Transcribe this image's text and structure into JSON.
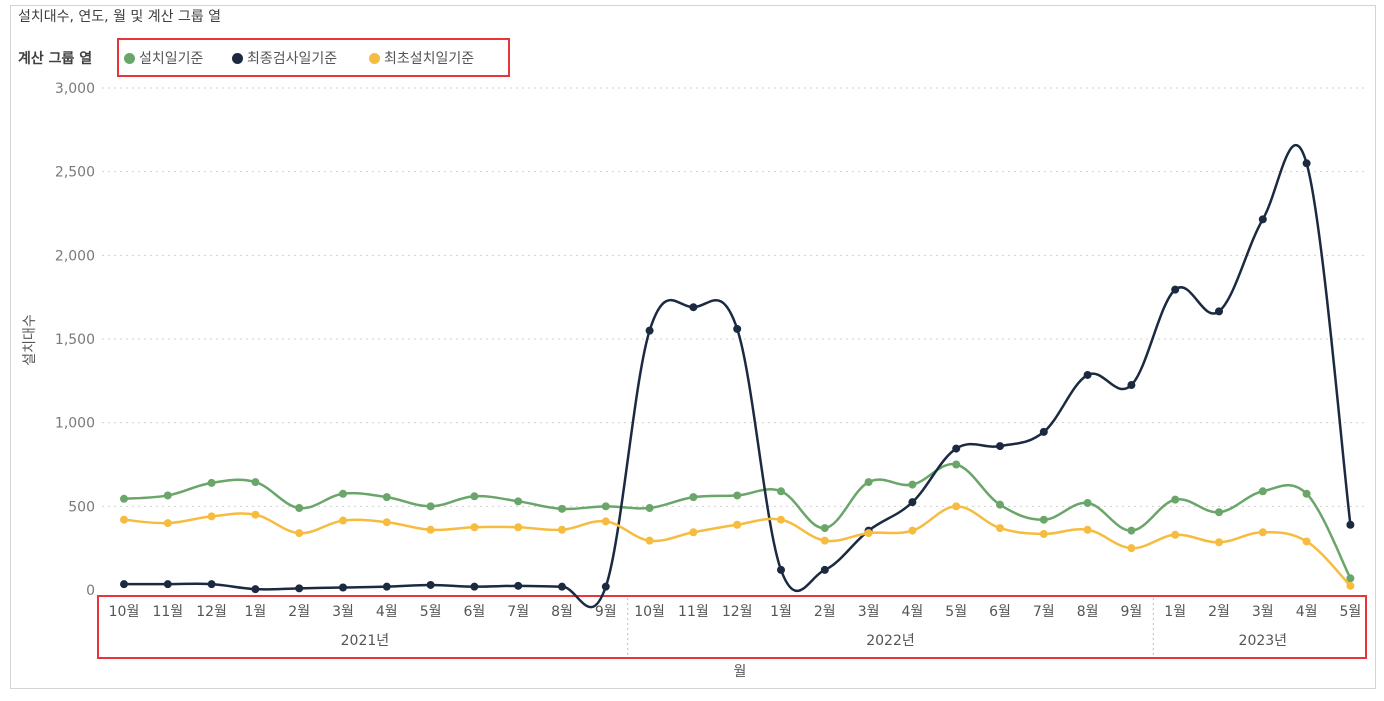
{
  "chart_data": {
    "type": "line",
    "title": "설치대수, 연도, 월 및 계산 그룹 열",
    "legend_title": "계산 그룹 열",
    "xlabel": "월",
    "ylabel": "설치대수",
    "ylim": [
      0,
      3000
    ],
    "yticks": [
      "0",
      "500",
      "1,000",
      "1,500",
      "2,000",
      "2,500",
      "3,000"
    ],
    "categories": [
      "10월",
      "11월",
      "12월",
      "1월",
      "2월",
      "3월",
      "4월",
      "5월",
      "6월",
      "7월",
      "8월",
      "9월",
      "10월",
      "11월",
      "12월",
      "1월",
      "2월",
      "3월",
      "4월",
      "5월",
      "6월",
      "7월",
      "8월",
      "9월",
      "1월",
      "2월",
      "3월",
      "4월",
      "5월"
    ],
    "years": [
      {
        "label": "2021년",
        "start": 0,
        "end": 11
      },
      {
        "label": "2022년",
        "start": 12,
        "end": 23
      },
      {
        "label": "2023년",
        "start": 24,
        "end": 28
      }
    ],
    "grid": true,
    "legend_placement": "top-left",
    "series": [
      {
        "name": "설치일기준",
        "color": "#6aa56a",
        "values": [
          545,
          565,
          640,
          645,
          490,
          575,
          555,
          500,
          560,
          530,
          485,
          500,
          490,
          555,
          565,
          590,
          370,
          645,
          630,
          750,
          510,
          420,
          520,
          355,
          540,
          465,
          590,
          575,
          70
        ]
      },
      {
        "name": "최종검사일기준",
        "color": "#1b2a41",
        "values": [
          35,
          35,
          35,
          5,
          10,
          15,
          20,
          30,
          20,
          25,
          20,
          20,
          1550,
          1690,
          1560,
          120,
          120,
          355,
          525,
          845,
          860,
          945,
          1285,
          1225,
          1795,
          1665,
          2215,
          2550,
          390
        ]
      },
      {
        "name": "최초설치일기준",
        "color": "#f6bc40",
        "values": [
          420,
          400,
          440,
          450,
          340,
          415,
          405,
          360,
          375,
          375,
          360,
          410,
          295,
          345,
          390,
          420,
          295,
          340,
          355,
          500,
          370,
          335,
          360,
          250,
          330,
          285,
          345,
          290,
          25
        ]
      }
    ]
  }
}
